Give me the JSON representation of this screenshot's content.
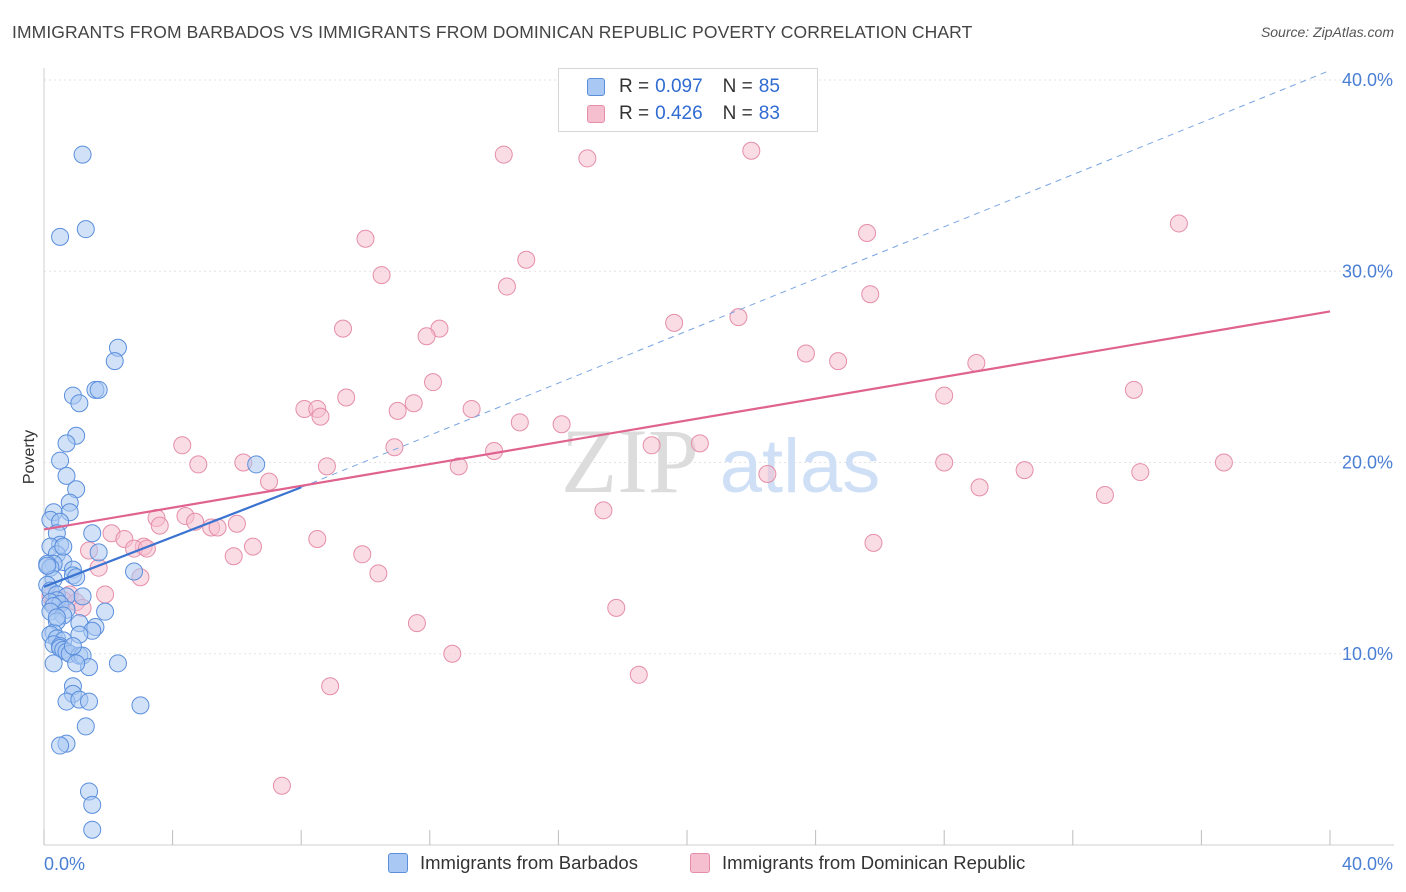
{
  "header": {
    "title": "IMMIGRANTS FROM BARBADOS VS IMMIGRANTS FROM DOMINICAN REPUBLIC POVERTY CORRELATION CHART",
    "source": "Source: ZipAtlas.com"
  },
  "legend": {
    "rows": [
      {
        "r_label": "R = ",
        "r_value": "0.097",
        "n_label": "N = ",
        "n_value": "85"
      },
      {
        "r_label": "R = ",
        "r_value": "0.426",
        "n_label": "N = ",
        "n_value": "83"
      }
    ]
  },
  "bottom_legend": {
    "items": [
      "Immigrants from Barbados",
      "Immigrants from Dominican Republic"
    ]
  },
  "watermark": {
    "zip": "ZIP",
    "atlas": "atlas"
  },
  "colors": {
    "blue_fill": "#a9c8f3",
    "blue_stroke": "#5b8fdc",
    "blue_line": "#3b73d0",
    "pink_fill": "#f6bfd0",
    "pink_stroke": "#e58ea9",
    "pink_line": "#e0628f",
    "grid": "#e3e3e3",
    "tick_text": "#4a7fd4"
  },
  "chart_data": {
    "type": "scatter",
    "title": "IMMIGRANTS FROM BARBADOS VS IMMIGRANTS FROM DOMINICAN REPUBLIC POVERTY CORRELATION CHART",
    "xlabel": "",
    "ylabel": "Poverty",
    "xlim": [
      0,
      0.4
    ],
    "ylim": [
      0,
      0.4
    ],
    "x_tick_labels": [
      "0.0%",
      "40.0%"
    ],
    "y_ticks": [
      0.1,
      0.2,
      0.3,
      0.4
    ],
    "y_tick_labels": [
      "10.0%",
      "20.0%",
      "30.0%",
      "40.0%"
    ],
    "grid": true,
    "legend_position": "top-center",
    "series": [
      {
        "name": "Immigrants from Barbados",
        "color": "#a9c8f3",
        "R": 0.097,
        "N": 85,
        "trend_solid": [
          [
            0.0,
            0.135
          ],
          [
            0.08,
            0.187
          ]
        ],
        "trend_dashed": [
          [
            0.08,
            0.187
          ],
          [
            0.4,
            0.405
          ]
        ],
        "points": [
          [
            0.012,
            0.361
          ],
          [
            0.013,
            0.322
          ],
          [
            0.005,
            0.318
          ],
          [
            0.023,
            0.26
          ],
          [
            0.022,
            0.253
          ],
          [
            0.016,
            0.238
          ],
          [
            0.017,
            0.238
          ],
          [
            0.009,
            0.235
          ],
          [
            0.011,
            0.231
          ],
          [
            0.01,
            0.214
          ],
          [
            0.007,
            0.21
          ],
          [
            0.005,
            0.201
          ],
          [
            0.007,
            0.193
          ],
          [
            0.066,
            0.199
          ],
          [
            0.01,
            0.186
          ],
          [
            0.008,
            0.179
          ],
          [
            0.008,
            0.174
          ],
          [
            0.003,
            0.174
          ],
          [
            0.002,
            0.17
          ],
          [
            0.005,
            0.169
          ],
          [
            0.004,
            0.163
          ],
          [
            0.015,
            0.163
          ],
          [
            0.005,
            0.157
          ],
          [
            0.002,
            0.156
          ],
          [
            0.004,
            0.152
          ],
          [
            0.017,
            0.153
          ],
          [
            0.006,
            0.148
          ],
          [
            0.003,
            0.147
          ],
          [
            0.001,
            0.147
          ],
          [
            0.002,
            0.145
          ],
          [
            0.009,
            0.144
          ],
          [
            0.028,
            0.143
          ],
          [
            0.009,
            0.141
          ],
          [
            0.01,
            0.14
          ],
          [
            0.003,
            0.139
          ],
          [
            0.001,
            0.136
          ],
          [
            0.002,
            0.133
          ],
          [
            0.004,
            0.131
          ],
          [
            0.007,
            0.13
          ],
          [
            0.012,
            0.13
          ],
          [
            0.004,
            0.128
          ],
          [
            0.002,
            0.127
          ],
          [
            0.005,
            0.126
          ],
          [
            0.003,
            0.125
          ],
          [
            0.007,
            0.123
          ],
          [
            0.002,
            0.122
          ],
          [
            0.019,
            0.122
          ],
          [
            0.006,
            0.12
          ],
          [
            0.004,
            0.117
          ],
          [
            0.011,
            0.116
          ],
          [
            0.016,
            0.114
          ],
          [
            0.015,
            0.112
          ],
          [
            0.003,
            0.111
          ],
          [
            0.011,
            0.11
          ],
          [
            0.002,
            0.11
          ],
          [
            0.004,
            0.108
          ],
          [
            0.006,
            0.107
          ],
          [
            0.003,
            0.105
          ],
          [
            0.005,
            0.104
          ],
          [
            0.005,
            0.103
          ],
          [
            0.006,
            0.102
          ],
          [
            0.007,
            0.101
          ],
          [
            0.008,
            0.1
          ],
          [
            0.011,
            0.099
          ],
          [
            0.012,
            0.099
          ],
          [
            0.003,
            0.095
          ],
          [
            0.014,
            0.093
          ],
          [
            0.023,
            0.095
          ],
          [
            0.009,
            0.083
          ],
          [
            0.009,
            0.079
          ],
          [
            0.007,
            0.075
          ],
          [
            0.011,
            0.076
          ],
          [
            0.014,
            0.075
          ],
          [
            0.03,
            0.073
          ],
          [
            0.013,
            0.062
          ],
          [
            0.007,
            0.053
          ],
          [
            0.005,
            0.052
          ],
          [
            0.014,
            0.028
          ],
          [
            0.015,
            0.021
          ],
          [
            0.015,
            0.008
          ],
          [
            0.001,
            0.146
          ],
          [
            0.004,
            0.119
          ],
          [
            0.009,
            0.104
          ],
          [
            0.01,
            0.095
          ],
          [
            0.006,
            0.156
          ]
        ]
      },
      {
        "name": "Immigrants from Dominican Republic",
        "color": "#f6bfd0",
        "R": 0.426,
        "N": 83,
        "trend_solid": [
          [
            0.0,
            0.165
          ],
          [
            0.4,
            0.279
          ]
        ],
        "points": [
          [
            0.143,
            0.361
          ],
          [
            0.169,
            0.359
          ],
          [
            0.22,
            0.363
          ],
          [
            0.1,
            0.317
          ],
          [
            0.105,
            0.298
          ],
          [
            0.15,
            0.306
          ],
          [
            0.144,
            0.292
          ],
          [
            0.256,
            0.32
          ],
          [
            0.353,
            0.325
          ],
          [
            0.257,
            0.288
          ],
          [
            0.216,
            0.276
          ],
          [
            0.196,
            0.273
          ],
          [
            0.093,
            0.27
          ],
          [
            0.123,
            0.27
          ],
          [
            0.119,
            0.266
          ],
          [
            0.237,
            0.257
          ],
          [
            0.247,
            0.253
          ],
          [
            0.29,
            0.252
          ],
          [
            0.121,
            0.242
          ],
          [
            0.094,
            0.234
          ],
          [
            0.115,
            0.231
          ],
          [
            0.081,
            0.228
          ],
          [
            0.085,
            0.228
          ],
          [
            0.11,
            0.227
          ],
          [
            0.133,
            0.228
          ],
          [
            0.086,
            0.224
          ],
          [
            0.28,
            0.235
          ],
          [
            0.339,
            0.238
          ],
          [
            0.148,
            0.221
          ],
          [
            0.161,
            0.22
          ],
          [
            0.109,
            0.208
          ],
          [
            0.043,
            0.209
          ],
          [
            0.14,
            0.206
          ],
          [
            0.189,
            0.209
          ],
          [
            0.204,
            0.21
          ],
          [
            0.048,
            0.199
          ],
          [
            0.062,
            0.2
          ],
          [
            0.088,
            0.198
          ],
          [
            0.129,
            0.198
          ],
          [
            0.225,
            0.194
          ],
          [
            0.28,
            0.2
          ],
          [
            0.305,
            0.196
          ],
          [
            0.33,
            0.183
          ],
          [
            0.341,
            0.195
          ],
          [
            0.367,
            0.2
          ],
          [
            0.291,
            0.187
          ],
          [
            0.07,
            0.19
          ],
          [
            0.174,
            0.175
          ],
          [
            0.044,
            0.172
          ],
          [
            0.035,
            0.171
          ],
          [
            0.047,
            0.169
          ],
          [
            0.036,
            0.167
          ],
          [
            0.052,
            0.166
          ],
          [
            0.06,
            0.168
          ],
          [
            0.054,
            0.166
          ],
          [
            0.021,
            0.163
          ],
          [
            0.025,
            0.16
          ],
          [
            0.031,
            0.156
          ],
          [
            0.028,
            0.155
          ],
          [
            0.032,
            0.155
          ],
          [
            0.085,
            0.16
          ],
          [
            0.065,
            0.156
          ],
          [
            0.059,
            0.151
          ],
          [
            0.099,
            0.152
          ],
          [
            0.258,
            0.158
          ],
          [
            0.014,
            0.154
          ],
          [
            0.017,
            0.145
          ],
          [
            0.104,
            0.142
          ],
          [
            0.008,
            0.131
          ],
          [
            0.019,
            0.131
          ],
          [
            0.006,
            0.128
          ],
          [
            0.01,
            0.127
          ],
          [
            0.004,
            0.125
          ],
          [
            0.012,
            0.124
          ],
          [
            0.178,
            0.124
          ],
          [
            0.116,
            0.116
          ],
          [
            0.127,
            0.1
          ],
          [
            0.185,
            0.089
          ],
          [
            0.089,
            0.083
          ],
          [
            0.074,
            0.031
          ],
          [
            0.03,
            0.14
          ],
          [
            0.002,
            0.13
          ],
          [
            0.003,
            0.127
          ]
        ]
      }
    ]
  }
}
